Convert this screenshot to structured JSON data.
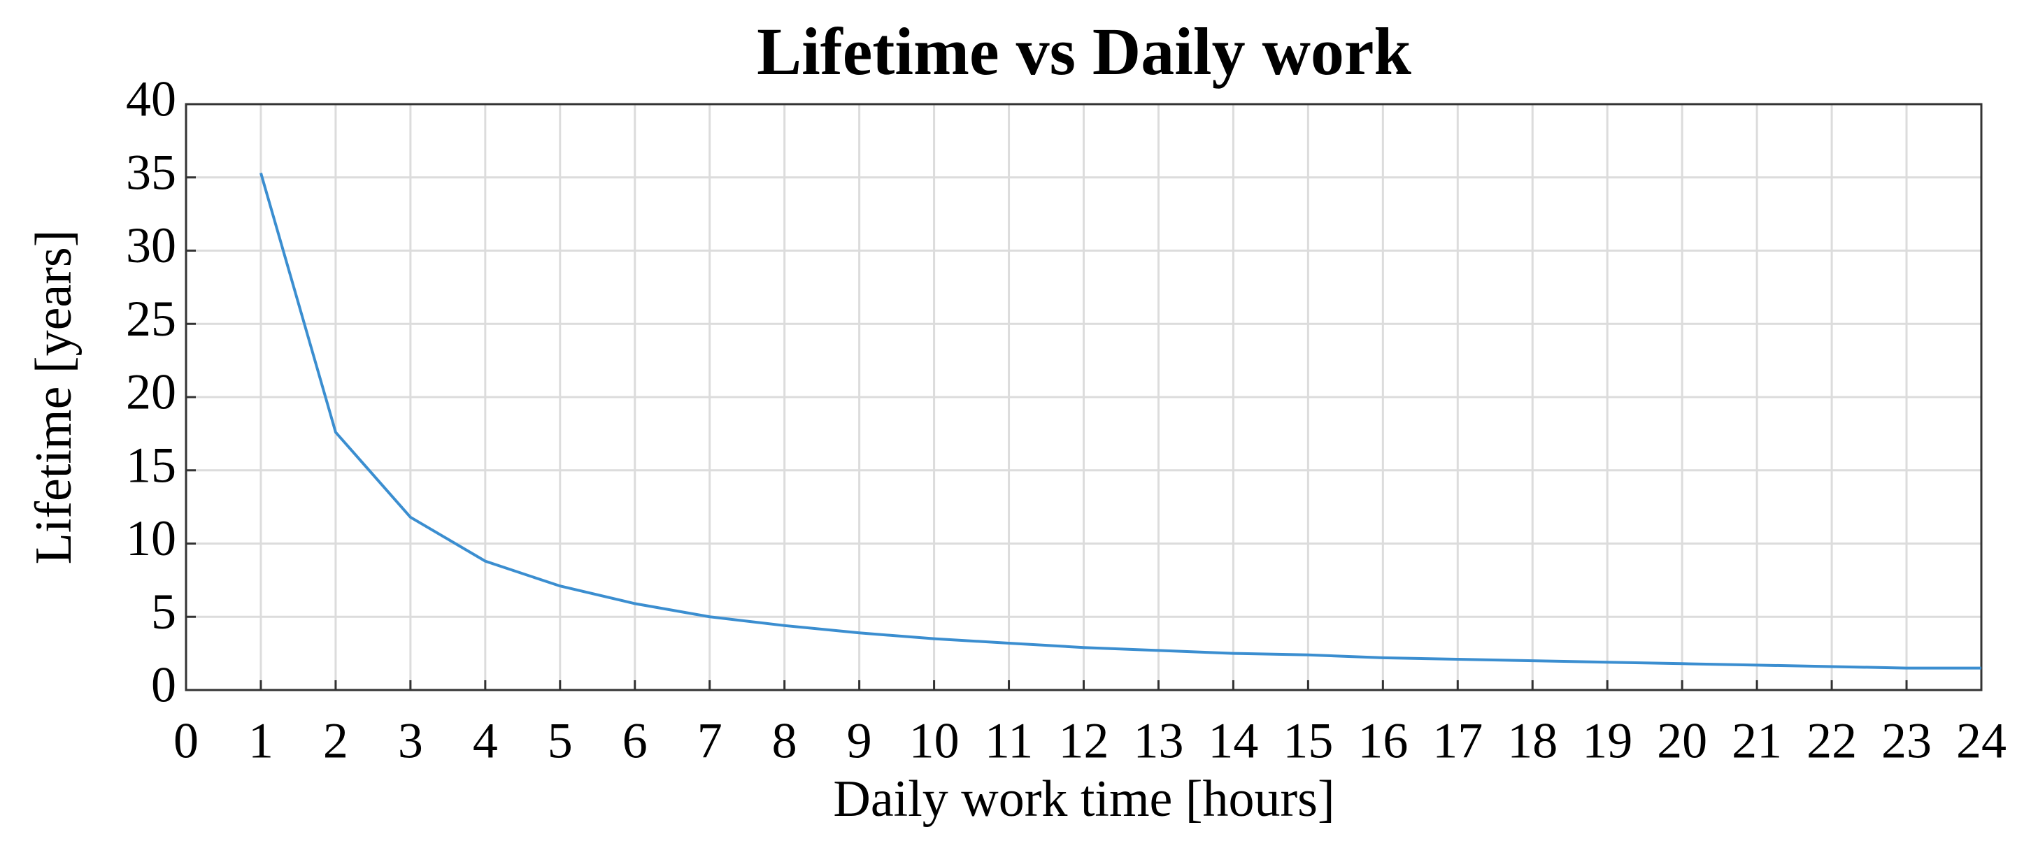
{
  "chart_data": {
    "type": "line",
    "title": "Lifetime vs Daily work",
    "x_label": "Daily work time [hours]",
    "y_label": "Lifetime [years]",
    "x": [
      1,
      2,
      3,
      4,
      5,
      6,
      7,
      8,
      9,
      10,
      11,
      12,
      13,
      14,
      15,
      16,
      17,
      18,
      19,
      20,
      21,
      22,
      23,
      24
    ],
    "series": [
      {
        "color": "#3b8ed0",
        "values": [
          35.3,
          17.6,
          11.8,
          8.8,
          7.1,
          5.9,
          5.0,
          4.4,
          3.9,
          3.5,
          3.2,
          2.9,
          2.7,
          2.5,
          2.4,
          2.2,
          2.1,
          2.0,
          1.9,
          1.8,
          1.7,
          1.6,
          1.5,
          1.5
        ]
      }
    ],
    "xlim": [
      0,
      24
    ],
    "xticks": [
      0,
      1,
      2,
      3,
      4,
      5,
      6,
      7,
      8,
      9,
      10,
      11,
      12,
      13,
      14,
      15,
      16,
      17,
      18,
      19,
      20,
      21,
      22,
      23,
      24
    ],
    "ylim": [
      0,
      40
    ],
    "yticks": [
      0,
      5,
      10,
      15,
      20,
      25,
      30,
      35,
      40
    ],
    "grid": true
  }
}
